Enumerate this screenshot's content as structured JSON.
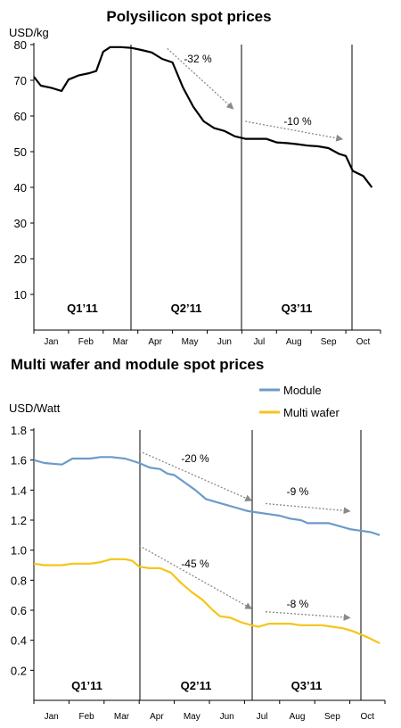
{
  "chart_data": [
    {
      "type": "line",
      "title": "Polysilicon spot prices",
      "ylabel": "USD/kg",
      "ylim": [
        0,
        80
      ],
      "yticks": [
        10,
        20,
        30,
        40,
        50,
        60,
        70,
        80
      ],
      "grid": false,
      "months": [
        "Jan",
        "Feb",
        "Mar",
        "Apr",
        "May",
        "Jun",
        "Jul",
        "Aug",
        "Sep",
        "Oct"
      ],
      "quarters": [
        "Q1’11",
        "Q2’11",
        "Q3’11"
      ],
      "series": [
        {
          "name": "",
          "color": "#000000",
          "points": [
            [
              0.0,
              71.0
            ],
            [
              0.2,
              68.5
            ],
            [
              0.5,
              67.9
            ],
            [
              0.8,
              67.0
            ],
            [
              1.0,
              70.2
            ],
            [
              1.3,
              71.4
            ],
            [
              1.6,
              72.0
            ],
            [
              1.8,
              72.6
            ],
            [
              2.0,
              78.0
            ],
            [
              2.2,
              79.3
            ],
            [
              2.5,
              79.3
            ],
            [
              2.8,
              79.1
            ],
            [
              3.1,
              78.5
            ],
            [
              3.4,
              77.8
            ],
            [
              3.7,
              76.0
            ],
            [
              4.0,
              75.0
            ],
            [
              4.3,
              68.0
            ],
            [
              4.6,
              62.6
            ],
            [
              4.9,
              58.5
            ],
            [
              5.2,
              56.6
            ],
            [
              5.5,
              55.8
            ],
            [
              5.8,
              54.3
            ],
            [
              6.1,
              53.6
            ],
            [
              6.4,
              53.6
            ],
            [
              6.7,
              53.6
            ],
            [
              7.0,
              52.6
            ],
            [
              7.3,
              52.4
            ],
            [
              7.6,
              52.1
            ],
            [
              7.9,
              51.7
            ],
            [
              8.2,
              51.5
            ],
            [
              8.5,
              51.0
            ],
            [
              8.8,
              49.4
            ],
            [
              9.0,
              48.8
            ],
            [
              9.2,
              44.6
            ],
            [
              9.5,
              43.2
            ],
            [
              9.75,
              40.0
            ]
          ]
        }
      ],
      "annotations": [
        {
          "label": "-32 %",
          "from": [
            3.85,
            78.9
          ],
          "to": [
            5.75,
            62.0
          ]
        },
        {
          "label": "-10 %",
          "from": [
            6.1,
            58.5
          ],
          "to": [
            8.9,
            53.5
          ]
        }
      ]
    },
    {
      "type": "line",
      "title": "Multi wafer and module spot prices",
      "ylabel": "USD/Watt",
      "ylim": [
        0,
        1.8
      ],
      "yticks": [
        "0.2",
        "0.4",
        "0.6",
        "0.8",
        "1.0",
        "1.2",
        "1.4",
        "1.6",
        "1.8"
      ],
      "grid": false,
      "months": [
        "Jan",
        "Feb",
        "Mar",
        "Apr",
        "May",
        "Jun",
        "Jul",
        "Aug",
        "Sep",
        "Oct"
      ],
      "quarters": [
        "Q1’11",
        "Q2’11",
        "Q3’11"
      ],
      "legend_position": "top-right",
      "series": [
        {
          "name": "Module",
          "color": "#6C9BC8",
          "points": [
            [
              0.0,
              1.6
            ],
            [
              0.3,
              1.58
            ],
            [
              0.8,
              1.57
            ],
            [
              1.1,
              1.61
            ],
            [
              1.6,
              1.61
            ],
            [
              1.9,
              1.62
            ],
            [
              2.2,
              1.62
            ],
            [
              2.6,
              1.61
            ],
            [
              3.0,
              1.58
            ],
            [
              3.3,
              1.55
            ],
            [
              3.6,
              1.54
            ],
            [
              3.8,
              1.51
            ],
            [
              4.0,
              1.5
            ],
            [
              4.3,
              1.45
            ],
            [
              4.6,
              1.4
            ],
            [
              4.9,
              1.34
            ],
            [
              5.2,
              1.32
            ],
            [
              5.5,
              1.3
            ],
            [
              5.8,
              1.28
            ],
            [
              6.1,
              1.26
            ],
            [
              6.4,
              1.25
            ],
            [
              6.7,
              1.24
            ],
            [
              7.0,
              1.23
            ],
            [
              7.3,
              1.21
            ],
            [
              7.6,
              1.2
            ],
            [
              7.8,
              1.18
            ],
            [
              8.1,
              1.18
            ],
            [
              8.4,
              1.18
            ],
            [
              8.7,
              1.16
            ],
            [
              9.0,
              1.14
            ],
            [
              9.3,
              1.13
            ],
            [
              9.6,
              1.12
            ],
            [
              9.85,
              1.1
            ]
          ]
        },
        {
          "name": "Multi wafer",
          "color": "#F5C518",
          "points": [
            [
              0.0,
              0.91
            ],
            [
              0.3,
              0.9
            ],
            [
              0.8,
              0.9
            ],
            [
              1.1,
              0.91
            ],
            [
              1.6,
              0.91
            ],
            [
              1.9,
              0.92
            ],
            [
              2.2,
              0.94
            ],
            [
              2.6,
              0.94
            ],
            [
              2.8,
              0.93
            ],
            [
              3.0,
              0.89
            ],
            [
              3.3,
              0.88
            ],
            [
              3.6,
              0.88
            ],
            [
              3.9,
              0.85
            ],
            [
              4.2,
              0.78
            ],
            [
              4.5,
              0.72
            ],
            [
              4.8,
              0.67
            ],
            [
              5.1,
              0.6
            ],
            [
              5.3,
              0.56
            ],
            [
              5.6,
              0.55
            ],
            [
              5.9,
              0.52
            ],
            [
              6.2,
              0.5
            ],
            [
              6.4,
              0.49
            ],
            [
              6.7,
              0.51
            ],
            [
              7.0,
              0.51
            ],
            [
              7.3,
              0.51
            ],
            [
              7.6,
              0.5
            ],
            [
              7.9,
              0.5
            ],
            [
              8.2,
              0.5
            ],
            [
              8.5,
              0.49
            ],
            [
              8.8,
              0.48
            ],
            [
              9.1,
              0.46
            ],
            [
              9.5,
              0.42
            ],
            [
              9.85,
              0.38
            ]
          ]
        }
      ],
      "annotations": [
        {
          "label": "-20 %",
          "from": [
            3.0,
            1.66
          ],
          "to": [
            6.2,
            1.33
          ]
        },
        {
          "label": "-9 %",
          "from": [
            6.6,
            1.31
          ],
          "to": [
            9.0,
            1.26
          ]
        },
        {
          "label": "-45 %",
          "from": [
            3.0,
            1.03
          ],
          "to": [
            6.2,
            0.61
          ]
        },
        {
          "label": "-8 %",
          "from": [
            6.6,
            0.59
          ],
          "to": [
            9.0,
            0.55
          ]
        }
      ]
    }
  ]
}
